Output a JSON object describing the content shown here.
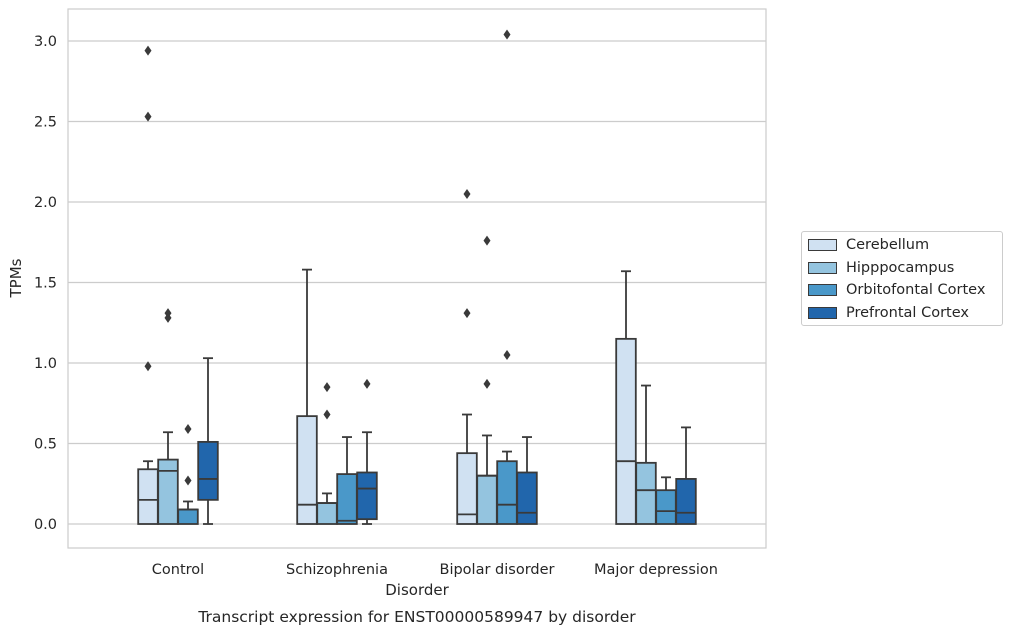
{
  "chart_data": {
    "type": "box",
    "title": "Transcript expression for ENST00000589947 by disorder",
    "xlabel": "Disorder",
    "ylabel": "TPMs",
    "ylim": [
      -0.15,
      3.2
    ],
    "yticks": [
      0.0,
      0.5,
      1.0,
      1.5,
      2.0,
      2.5,
      3.0
    ],
    "ytick_labels": [
      "0.0",
      "0.5",
      "1.0",
      "1.5",
      "2.0",
      "2.5",
      "3.0"
    ],
    "grid": "horizontal",
    "legend_position": "right",
    "categories": [
      "Control",
      "Schizophrenia",
      "Bipolar disorder",
      "Major depression"
    ],
    "series": [
      {
        "name": "Cerebellum",
        "color": "#d0e1f2",
        "boxes": [
          {
            "whisker_low": 0.0,
            "q1": 0.0,
            "median": 0.15,
            "q3": 0.34,
            "whisker_high": 0.39,
            "outliers": [
              0.98,
              2.53,
              2.94
            ]
          },
          {
            "whisker_low": 0.0,
            "q1": 0.0,
            "median": 0.12,
            "q3": 0.67,
            "whisker_high": 1.58,
            "outliers": []
          },
          {
            "whisker_low": 0.0,
            "q1": 0.0,
            "median": 0.06,
            "q3": 0.44,
            "whisker_high": 0.68,
            "outliers": [
              1.31,
              2.05
            ]
          },
          {
            "whisker_low": 0.0,
            "q1": 0.0,
            "median": 0.39,
            "q3": 1.15,
            "whisker_high": 1.57,
            "outliers": []
          }
        ]
      },
      {
        "name": "Hipppocampus",
        "color": "#94c4df",
        "boxes": [
          {
            "whisker_low": 0.0,
            "q1": 0.0,
            "median": 0.33,
            "q3": 0.4,
            "whisker_high": 0.57,
            "outliers": [
              1.28,
              1.31
            ]
          },
          {
            "whisker_low": 0.0,
            "q1": 0.0,
            "median": 0.13,
            "q3": 0.13,
            "whisker_high": 0.19,
            "outliers": [
              0.68,
              0.85
            ]
          },
          {
            "whisker_low": 0.0,
            "q1": 0.0,
            "median": 0.3,
            "q3": 0.3,
            "whisker_high": 0.55,
            "outliers": [
              0.87,
              1.76
            ]
          },
          {
            "whisker_low": 0.0,
            "q1": 0.0,
            "median": 0.21,
            "q3": 0.38,
            "whisker_high": 0.86,
            "outliers": []
          }
        ]
      },
      {
        "name": "Orbitofontal Cortex",
        "color": "#4a98c9",
        "boxes": [
          {
            "whisker_low": 0.0,
            "q1": 0.0,
            "median": 0.09,
            "q3": 0.09,
            "whisker_high": 0.14,
            "outliers": [
              0.27,
              0.59
            ]
          },
          {
            "whisker_low": 0.0,
            "q1": 0.0,
            "median": 0.02,
            "q3": 0.31,
            "whisker_high": 0.54,
            "outliers": []
          },
          {
            "whisker_low": 0.0,
            "q1": 0.0,
            "median": 0.12,
            "q3": 0.39,
            "whisker_high": 0.45,
            "outliers": [
              1.05,
              3.04
            ]
          },
          {
            "whisker_low": 0.0,
            "q1": 0.0,
            "median": 0.08,
            "q3": 0.21,
            "whisker_high": 0.29,
            "outliers": []
          }
        ]
      },
      {
        "name": "Prefrontal Cortex",
        "color": "#2166ac",
        "boxes": [
          {
            "whisker_low": 0.0,
            "q1": 0.15,
            "median": 0.28,
            "q3": 0.51,
            "whisker_high": 1.03,
            "outliers": []
          },
          {
            "whisker_low": 0.0,
            "q1": 0.03,
            "median": 0.22,
            "q3": 0.32,
            "whisker_high": 0.57,
            "outliers": [
              0.87
            ]
          },
          {
            "whisker_low": 0.0,
            "q1": 0.0,
            "median": 0.07,
            "q3": 0.32,
            "whisker_high": 0.54,
            "outliers": []
          },
          {
            "whisker_low": 0.0,
            "q1": 0.0,
            "median": 0.07,
            "q3": 0.28,
            "whisker_high": 0.6,
            "outliers": []
          }
        ]
      }
    ]
  }
}
